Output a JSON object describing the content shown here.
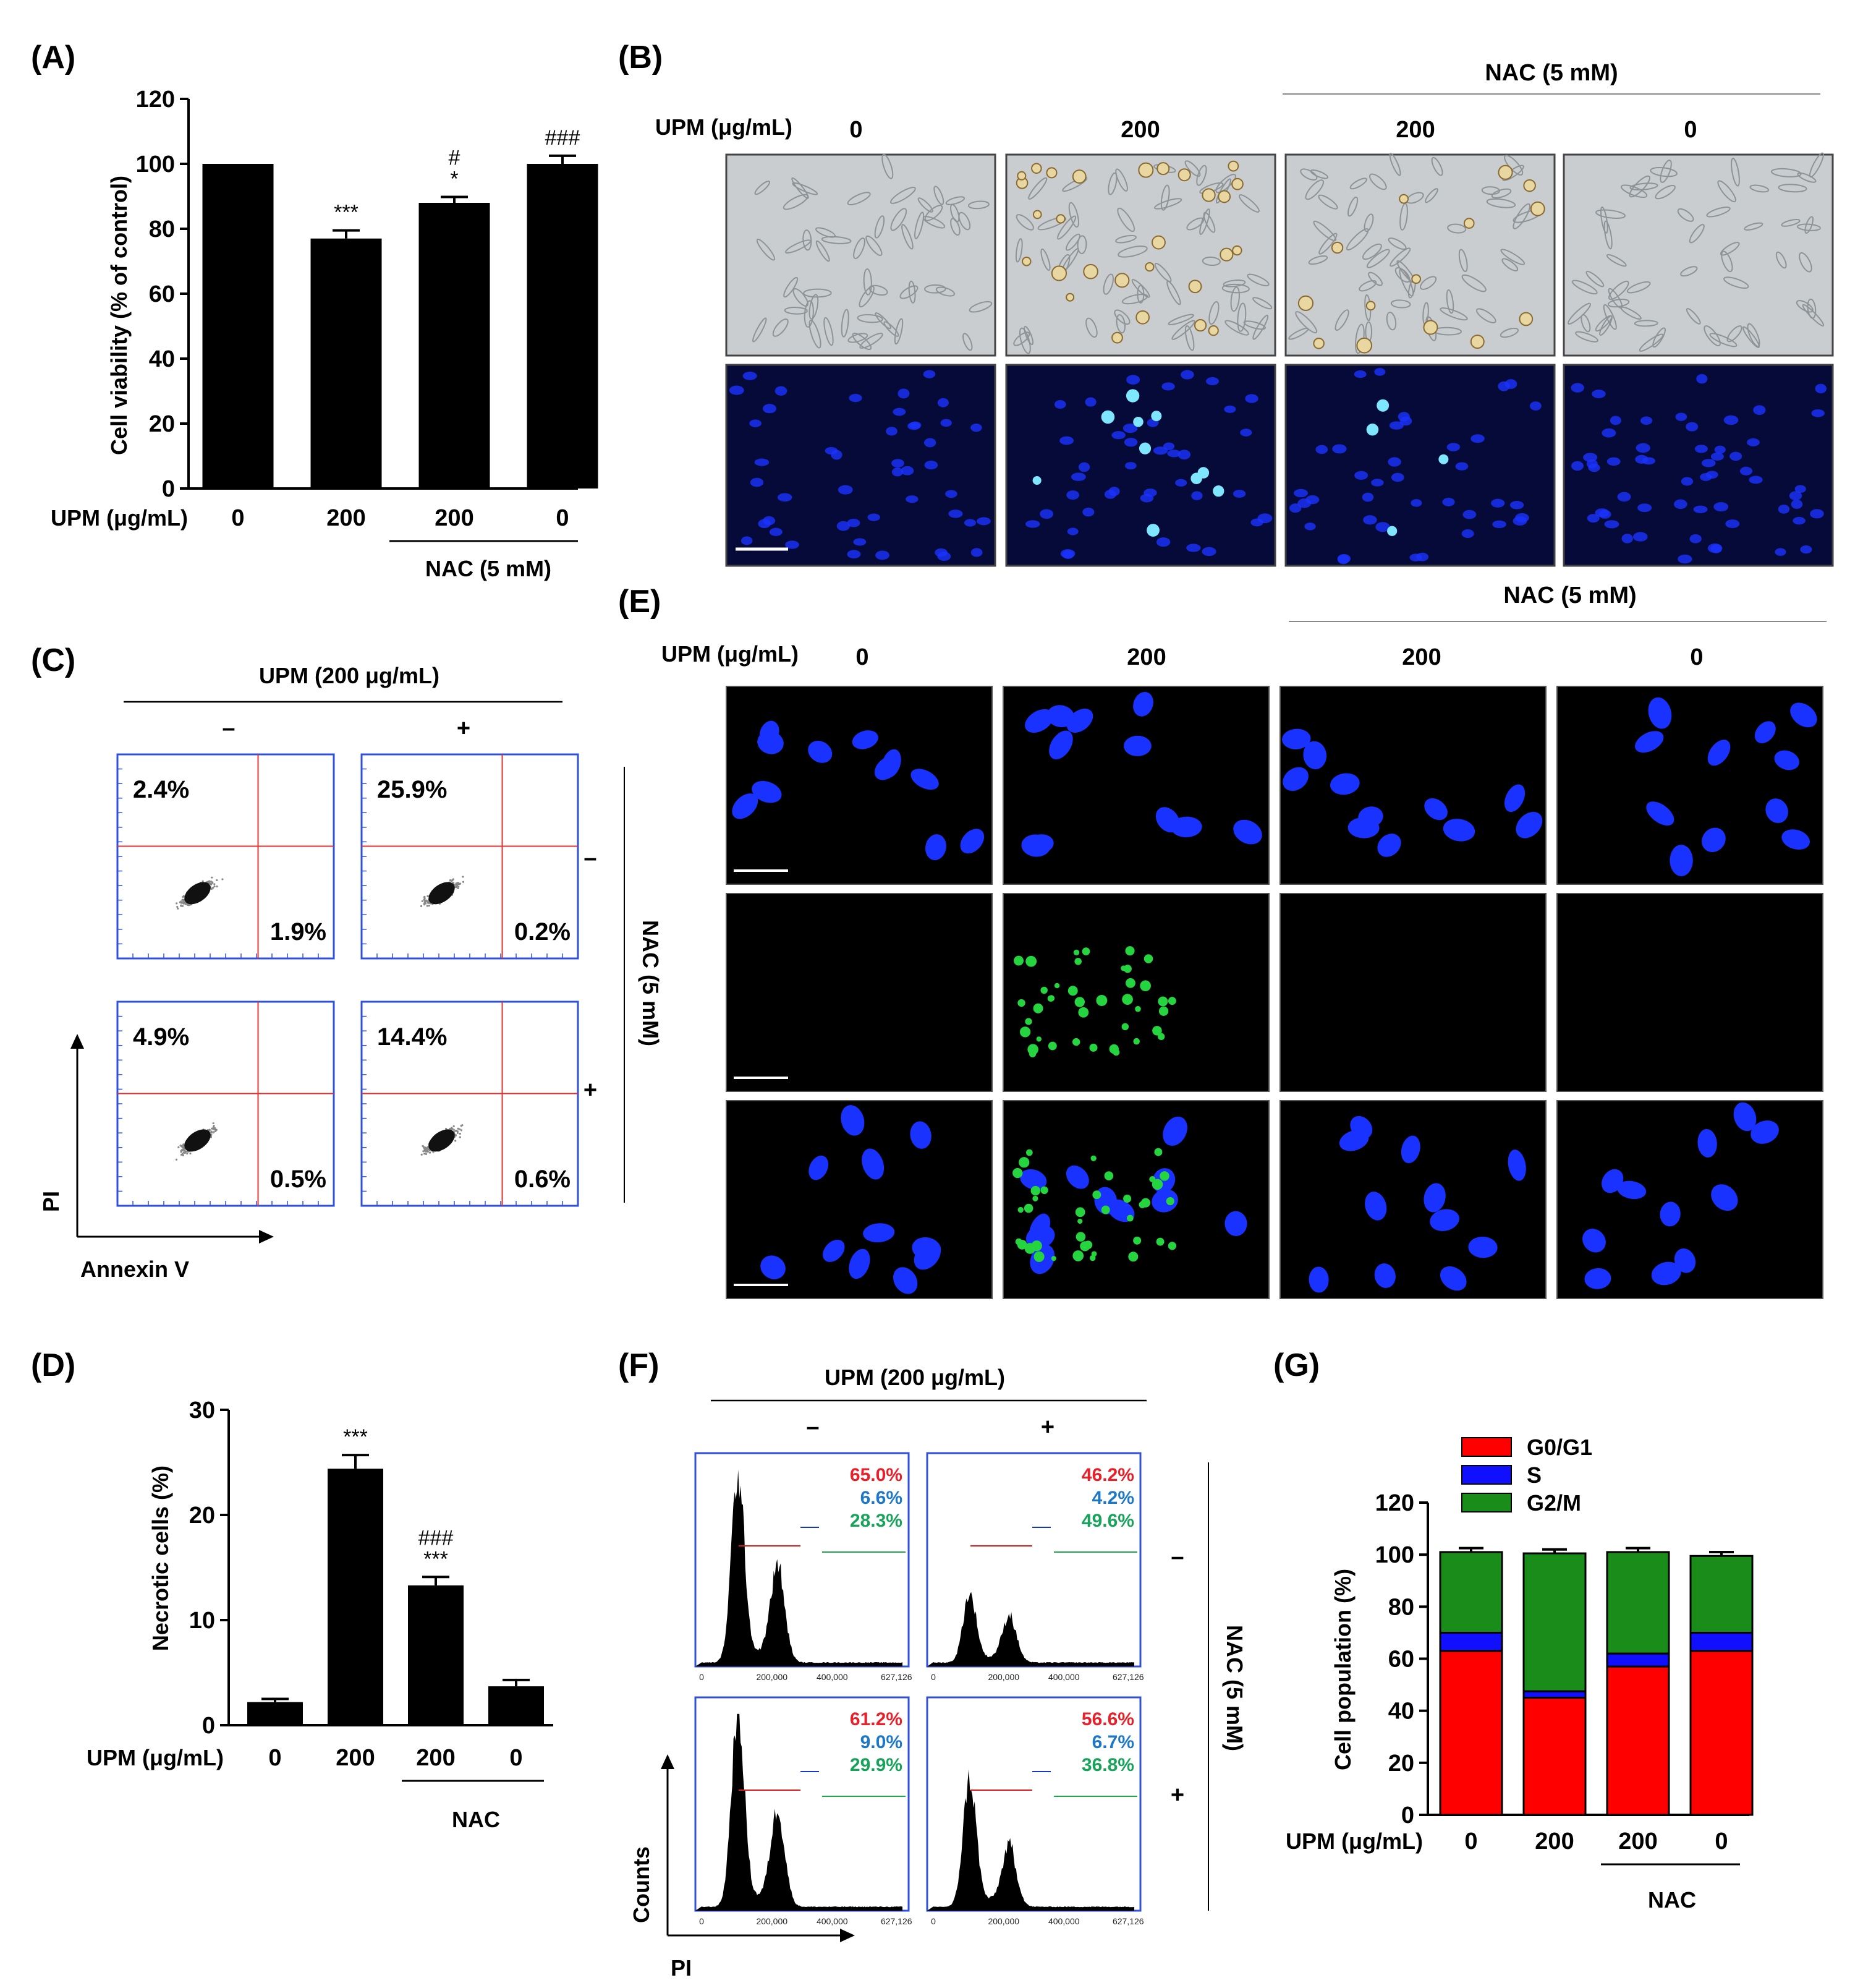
{
  "colors": {
    "bar": "#000000",
    "gate_red": "#e01818",
    "gate_blue": "#1636c8",
    "gate_green": "#1aa84a",
    "pct_red": "#e8202a",
    "pct_blue": "#1e78c8",
    "pct_green": "#17a35a",
    "g0g1": "#ff0000",
    "s": "#1010ff",
    "g2m": "#1a8c1a",
    "dapi": "#1a32ff",
    "tunel": "#25d540",
    "flow_border": "#3050d8",
    "quad": "#e03030"
  },
  "panels": {
    "A": "(A)",
    "B": "(B)",
    "C": "(C)",
    "D": "(D)",
    "E": "(E)",
    "F": "(F)",
    "G": "(G)"
  },
  "common": {
    "upm_label": "UPM (μg/mL)",
    "nac_label": "NAC (5 mM)",
    "nac_short": "NAC",
    "upm200": "UPM (200 μg/mL)",
    "minus": "–",
    "plus": "+",
    "side_minus": "–",
    "side_plus": "+",
    "doses": [
      "0",
      "200",
      "200",
      "0"
    ]
  },
  "panel_a": {
    "chart_data": {
      "type": "bar",
      "ylabel": "Cell viability (% of control)",
      "ylim": [
        0,
        120
      ],
      "yticks": [
        "0",
        "20",
        "40",
        "60",
        "80",
        "100",
        "120"
      ],
      "categories": [
        "0",
        "200",
        "200",
        "0"
      ],
      "values": [
        100,
        77,
        88,
        100
      ],
      "errors": [
        0,
        2.5,
        1.8,
        2.5
      ],
      "annotations": [
        "",
        "***",
        "*",
        ""
      ],
      "annotations2": [
        "",
        "",
        "#",
        "###"
      ],
      "group_label": "NAC (5 mM)"
    }
  },
  "panel_c": {
    "axis_y": "PI",
    "axis_x": "Annexin V",
    "plots": [
      {
        "ul": "2.4%",
        "lr": "1.9%"
      },
      {
        "ul": "25.9%",
        "lr": "0.2%"
      },
      {
        "ul": "4.9%",
        "lr": "0.5%"
      },
      {
        "ul": "14.4%",
        "lr": "0.6%"
      }
    ]
  },
  "panel_d": {
    "chart_data": {
      "type": "bar",
      "ylabel": "Necrotic cells (%)",
      "ylim": [
        0,
        30
      ],
      "yticks": [
        "0",
        "10",
        "20",
        "30"
      ],
      "categories": [
        "0",
        "200",
        "200",
        "0"
      ],
      "values": [
        2.2,
        24.4,
        13.3,
        3.7
      ],
      "errors": [
        0.3,
        1.3,
        0.8,
        0.6
      ],
      "annotations": [
        "",
        "***",
        "***",
        ""
      ],
      "annotations2": [
        "",
        "",
        "###",
        ""
      ],
      "group_label": "NAC"
    }
  },
  "panel_f": {
    "axis_y": "Counts",
    "axis_x": "PI",
    "tick_labels": [
      "0",
      "200,000",
      "400,000",
      "627,126"
    ],
    "plots": [
      {
        "g1": "65.0%",
        "s": "6.6%",
        "g2": "28.3%"
      },
      {
        "g1": "46.2%",
        "s": "4.2%",
        "g2": "49.6%"
      },
      {
        "g1": "61.2%",
        "s": "9.0%",
        "g2": "29.9%"
      },
      {
        "g1": "56.6%",
        "s": "6.7%",
        "g2": "36.8%"
      }
    ]
  },
  "panel_g": {
    "chart_data": {
      "type": "bar",
      "stacked": true,
      "ylabel": "Cell population (%)",
      "ylim": [
        0,
        120
      ],
      "yticks": [
        "0",
        "20",
        "40",
        "60",
        "80",
        "100",
        "120"
      ],
      "categories": [
        "0",
        "200",
        "200",
        "0"
      ],
      "series": [
        {
          "name": "G0/G1",
          "values": [
            63,
            45,
            57,
            63
          ]
        },
        {
          "name": "S",
          "values": [
            7,
            2.5,
            5,
            7
          ]
        },
        {
          "name": "G2/M",
          "values": [
            31,
            53,
            39,
            29.5
          ]
        }
      ],
      "group_label": "NAC"
    }
  }
}
